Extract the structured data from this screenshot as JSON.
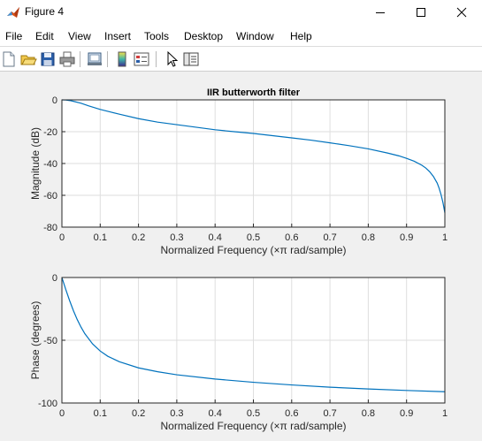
{
  "window": {
    "title": "Figure 4",
    "controls": [
      "minimize",
      "maximize",
      "close"
    ]
  },
  "menu": {
    "items": [
      "File",
      "Edit",
      "View",
      "Insert",
      "Tools",
      "Desktop",
      "Window",
      "Help"
    ]
  },
  "toolbar": {
    "icons": [
      "new-figure-icon",
      "open-file-icon",
      "save-icon",
      "print-icon",
      "link-plot-icon",
      "colorbar-icon",
      "legend-icon",
      "pointer-icon",
      "property-editor-icon"
    ]
  },
  "chart_data": [
    {
      "type": "line",
      "title": "IIR butterworth filter",
      "xlabel": "Normalized Frequency  (×π rad/sample)",
      "ylabel": "Magnitude (dB)",
      "xlim": [
        0,
        1
      ],
      "ylim": [
        -80,
        0
      ],
      "xticks": [
        "0",
        "0.1",
        "0.2",
        "0.3",
        "0.4",
        "0.5",
        "0.6",
        "0.7",
        "0.8",
        "0.9",
        "1"
      ],
      "yticks": [
        "0",
        "-20",
        "-40",
        "-60",
        "-80"
      ],
      "grid": true,
      "color": "#0072bd",
      "series": [
        {
          "x": [
            0,
            0.01,
            0.02,
            0.03,
            0.05,
            0.07,
            0.1,
            0.15,
            0.2,
            0.25,
            0.3,
            0.35,
            0.4,
            0.45,
            0.5,
            0.55,
            0.6,
            0.65,
            0.7,
            0.75,
            0.8,
            0.85,
            0.88,
            0.9,
            0.92,
            0.94,
            0.95,
            0.96,
            0.97,
            0.98,
            0.985,
            0.99,
            0.995,
            1.0
          ],
          "values": [
            0,
            -0.1,
            -0.4,
            -0.9,
            -2.1,
            -3.8,
            -6.0,
            -9.0,
            -11.8,
            -14.0,
            -15.6,
            -17.2,
            -18.8,
            -20.0,
            -21.1,
            -22.5,
            -23.9,
            -25.3,
            -27.0,
            -28.8,
            -30.8,
            -33.4,
            -35.2,
            -36.8,
            -38.6,
            -41.1,
            -42.8,
            -45.1,
            -48.1,
            -52.3,
            -55.5,
            -59.5,
            -64.5,
            -71.0
          ]
        }
      ]
    },
    {
      "type": "line",
      "title": "",
      "xlabel": "Normalized Frequency  (×π rad/sample)",
      "ylabel": "Phase (degrees)",
      "xlim": [
        0,
        1
      ],
      "ylim": [
        -100,
        0
      ],
      "xticks": [
        "0",
        "0.1",
        "0.2",
        "0.3",
        "0.4",
        "0.5",
        "0.6",
        "0.7",
        "0.8",
        "0.9",
        "1"
      ],
      "yticks": [
        "0",
        "-50",
        "-100"
      ],
      "grid": true,
      "color": "#0072bd",
      "series": [
        {
          "x": [
            0,
            0.01,
            0.02,
            0.03,
            0.04,
            0.05,
            0.06,
            0.08,
            0.1,
            0.12,
            0.15,
            0.2,
            0.25,
            0.3,
            0.4,
            0.5,
            0.6,
            0.7,
            0.8,
            0.9,
            1.0
          ],
          "values": [
            0,
            -9.5,
            -18.3,
            -26.4,
            -33.5,
            -39.6,
            -44.8,
            -52.9,
            -58.6,
            -62.8,
            -67.1,
            -72.0,
            -75.1,
            -77.5,
            -80.9,
            -83.5,
            -85.6,
            -87.4,
            -88.8,
            -90.0,
            -91.0
          ]
        }
      ]
    }
  ]
}
